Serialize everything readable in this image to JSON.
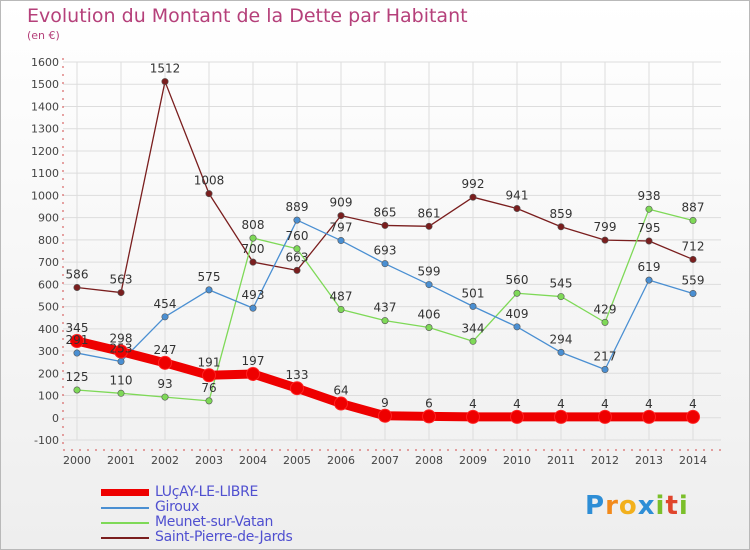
{
  "title": "Evolution du Montant de la Dette par Habitant",
  "subtitle": "(en €)",
  "logo": {
    "text": "Proxiti"
  },
  "chart_data": {
    "type": "line",
    "categories": [
      "2000",
      "2001",
      "2002",
      "2003",
      "2004",
      "2005",
      "2006",
      "2007",
      "2008",
      "2009",
      "2010",
      "2011",
      "2012",
      "2013",
      "2014"
    ],
    "ylim": [
      -100,
      1600
    ],
    "yticks": [
      "-100",
      "0",
      "100",
      "200",
      "300",
      "400",
      "500",
      "600",
      "700",
      "800",
      "900",
      "1000",
      "1100",
      "1200",
      "1300",
      "1400",
      "1500",
      "1600"
    ],
    "grid": true,
    "legend_position": "bottom-left",
    "series": [
      {
        "name": "LUçAY-LE-LIBRE",
        "color": "#ee0000",
        "values": [
          345,
          298,
          247,
          191,
          197,
          133,
          64,
          9,
          6,
          4,
          4,
          4,
          4,
          4,
          4
        ],
        "labels": [
          "345",
          "298",
          "247",
          "191",
          "197",
          "133",
          "64",
          "9",
          "6",
          "4",
          "4",
          "4",
          "4",
          "4",
          "4"
        ]
      },
      {
        "name": "Giroux",
        "color": "#4a8fd2",
        "values": [
          291,
          253,
          454,
          575,
          493,
          889,
          797,
          693,
          599,
          501,
          409,
          294,
          217,
          619,
          559
        ],
        "labels": [
          "291",
          "253",
          "454",
          "575",
          "493",
          "889",
          "797",
          "693",
          "599",
          "501",
          "409",
          "294",
          "217",
          "619",
          "559"
        ]
      },
      {
        "name": "Meunet-sur-Vatan",
        "color": "#7ed957",
        "values": [
          125,
          110,
          93,
          76,
          808,
          760,
          487,
          437,
          406,
          344,
          560,
          545,
          429,
          938,
          887
        ],
        "labels": [
          "125",
          "110",
          "93",
          "76",
          "808",
          "760",
          "487",
          "437",
          "406",
          "344",
          "560",
          "545",
          "429",
          "938",
          "887"
        ]
      },
      {
        "name": "Saint-Pierre-de-Jards",
        "color": "#7a1e1e",
        "values": [
          586,
          563,
          1512,
          1008,
          700,
          663,
          909,
          865,
          861,
          992,
          941,
          859,
          799,
          795,
          712
        ],
        "labels": [
          "586",
          "563",
          "1512",
          "1008",
          "700",
          "663",
          "909",
          "865",
          "861",
          "992",
          "941",
          "859",
          "799",
          "795",
          "712"
        ]
      }
    ]
  }
}
